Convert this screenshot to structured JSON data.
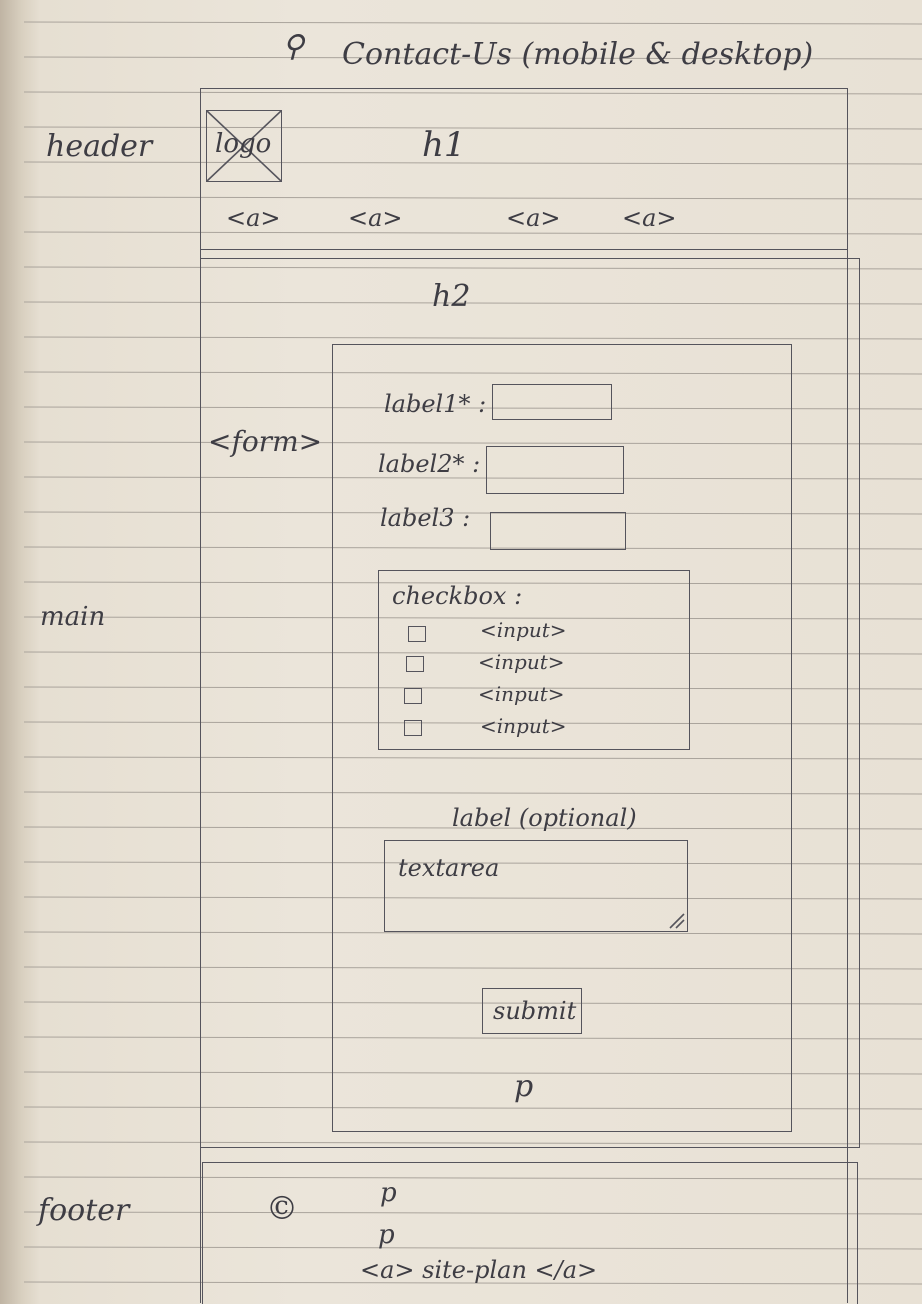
{
  "title": "Contact-Us (mobile & desktop)",
  "side_labels": {
    "header": "header",
    "main": "main",
    "form": "<form>",
    "footer": "footer"
  },
  "header": {
    "logo": "logo",
    "h1": "h1",
    "links": [
      "<a>",
      "<a>",
      "<a>",
      "<a>"
    ]
  },
  "main": {
    "h2": "h2",
    "form": {
      "fields": [
        {
          "label": "label1* :"
        },
        {
          "label": "label2* :"
        },
        {
          "label": "label3 :"
        }
      ],
      "checkbox_group": {
        "legend": "checkbox :",
        "items": [
          "<input>",
          "<input>",
          "<input>",
          "<input>"
        ]
      },
      "textarea_label": "label (optional)",
      "textarea_text": "textarea",
      "submit": "submit",
      "p": "p"
    }
  },
  "footer": {
    "copyright": "©",
    "paragraphs": [
      "p",
      "p"
    ],
    "link": "<a> site-plan </a>"
  }
}
